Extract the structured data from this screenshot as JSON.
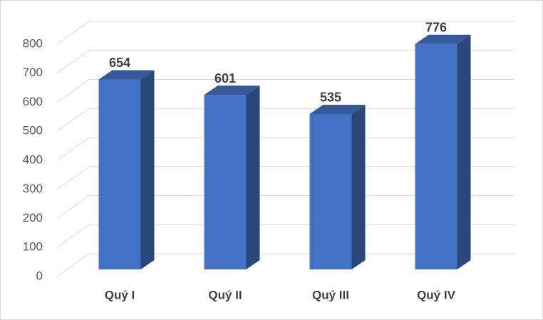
{
  "chart_data": {
    "type": "bar3d",
    "categories": [
      "Quý I",
      "Quý II",
      "Quý III",
      "Quý IV"
    ],
    "values": [
      654,
      601,
      535,
      776
    ],
    "color": "#4472c4",
    "ylim": [
      0,
      800
    ],
    "yticks": [
      0,
      100,
      200,
      300,
      400,
      500,
      600,
      700,
      800
    ],
    "grid": true
  }
}
